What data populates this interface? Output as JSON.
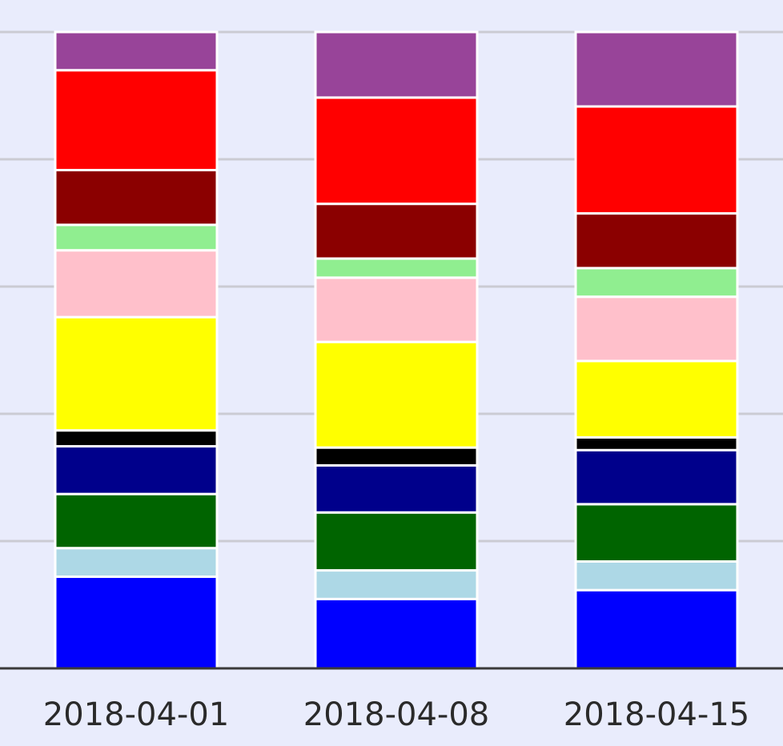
{
  "chart_data": {
    "type": "bar",
    "stacked": true,
    "categories": [
      "2018-04-01",
      "2018-04-08",
      "2018-04-15"
    ],
    "ylim": [
      0,
      100
    ],
    "grid": true,
    "series": [
      {
        "color": "#0000ff",
        "values": [
          14.4,
          10.9,
          12.3
        ]
      },
      {
        "color": "#add8e6",
        "values": [
          4.5,
          4.5,
          4.5
        ]
      },
      {
        "color": "#006400",
        "values": [
          8.5,
          9.1,
          9.0
        ]
      },
      {
        "color": "#00008b",
        "values": [
          7.5,
          7.4,
          8.5
        ]
      },
      {
        "color": "#000000",
        "values": [
          2.5,
          2.8,
          2.0
        ]
      },
      {
        "color": "#ffff00",
        "values": [
          17.8,
          16.6,
          12.0
        ]
      },
      {
        "color": "#ffc0cb",
        "values": [
          10.5,
          10.1,
          10.1
        ]
      },
      {
        "color": "#90ee90",
        "values": [
          4.0,
          3.0,
          4.5
        ]
      },
      {
        "color": "#8b0000",
        "values": [
          8.6,
          8.6,
          8.6
        ]
      },
      {
        "color": "#ff0000",
        "values": [
          15.7,
          16.7,
          16.8
        ]
      },
      {
        "color": "#984499",
        "values": [
          6.0,
          10.3,
          11.7
        ]
      }
    ]
  }
}
